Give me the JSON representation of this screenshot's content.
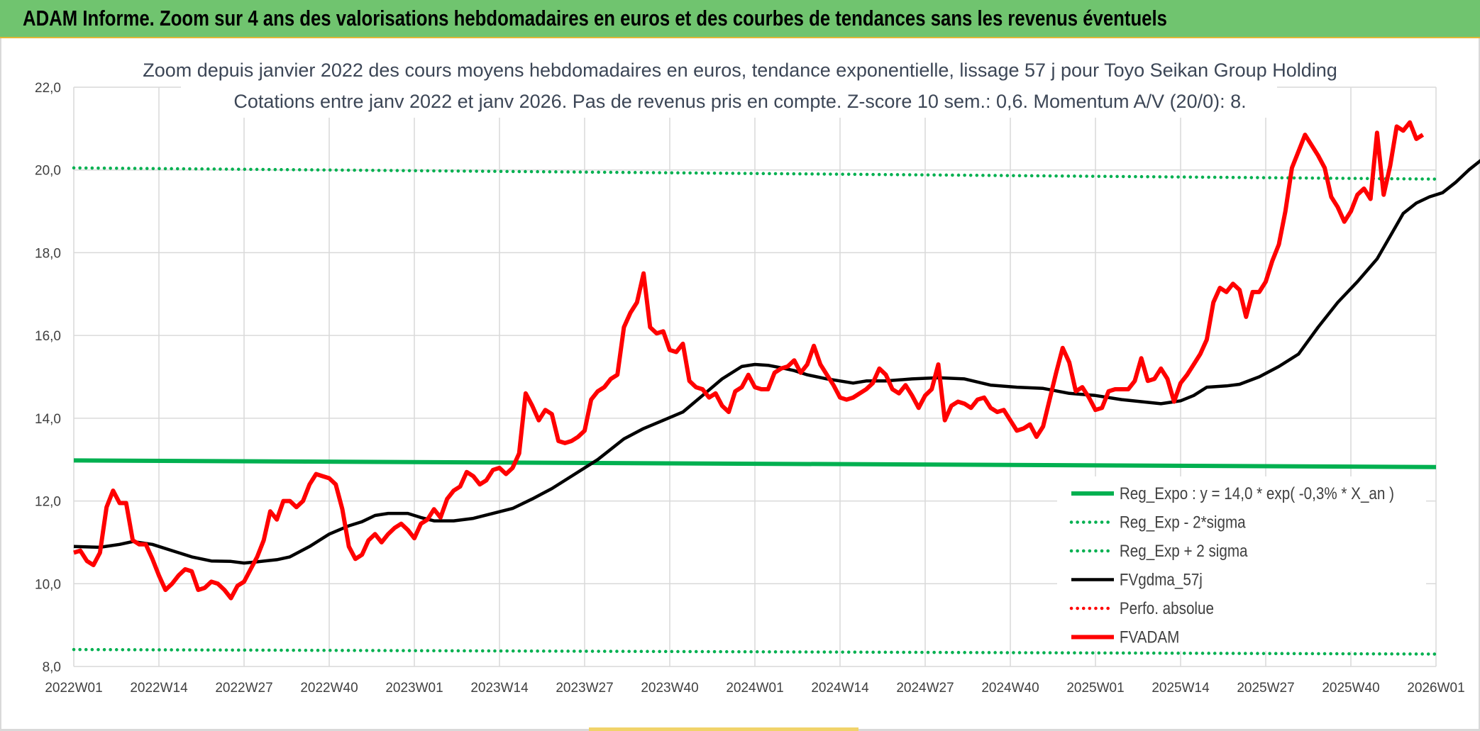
{
  "header": {
    "title": "ADAM Informe. Zoom sur 4 ans des valorisations hebdomadaires en euros et des courbes de tendances sans les revenus éventuels"
  },
  "chart_data": {
    "type": "line",
    "title": "Zoom depuis janvier 2022 des cours moyens hebdomadaires en euros, tendance exponentielle, lissage 57 j pour Toyo Seikan Group Holding",
    "subtitle": "Cotations entre janv 2022 et janv 2026. Pas de revenus pris en compte. Z-score 10 sem.: 0,6. Momentum A/V (20/0): 8.",
    "xlabel": "",
    "ylabel": "",
    "ylim": [
      8,
      22
    ],
    "yticks": [
      "8,0",
      "10,0",
      "12,0",
      "14,0",
      "16,0",
      "18,0",
      "20,0",
      "22,0"
    ],
    "xticks": [
      "2022W01",
      "2022W14",
      "2022W27",
      "2022W40",
      "2023W01",
      "2023W14",
      "2023W27",
      "2023W40",
      "2024W01",
      "2024W14",
      "2024W27",
      "2024W40",
      "2025W01",
      "2025W14",
      "2025W27",
      "2025W40",
      "2026W01"
    ],
    "x_range_weeks": [
      0,
      208
    ],
    "grid": true,
    "legend_position": "bottom-right",
    "series": [
      {
        "name": "Reg_Expo : y = 14,0 * exp( -0,3% *  X_an )",
        "color": "#00b050",
        "style": "solid-thick",
        "points": [
          [
            0,
            12.98
          ],
          [
            208,
            12.82
          ]
        ]
      },
      {
        "name": "Reg_Exp - 2*sigma",
        "color": "#00b050",
        "style": "dotted",
        "points": [
          [
            0,
            8.41
          ],
          [
            208,
            8.3
          ]
        ]
      },
      {
        "name": "Reg_Exp + 2 sigma",
        "color": "#00b050",
        "style": "dotted",
        "points": [
          [
            0,
            20.05
          ],
          [
            208,
            19.78
          ]
        ]
      },
      {
        "name": "FVgdma_57j",
        "color": "#000000",
        "style": "solid",
        "points": [
          [
            0,
            10.9
          ],
          [
            4,
            10.88
          ],
          [
            7,
            10.95
          ],
          [
            9,
            11.02
          ],
          [
            12,
            10.95
          ],
          [
            15,
            10.8
          ],
          [
            18,
            10.65
          ],
          [
            21,
            10.55
          ],
          [
            24,
            10.54
          ],
          [
            26,
            10.5
          ],
          [
            28,
            10.53
          ],
          [
            31,
            10.58
          ],
          [
            33,
            10.65
          ],
          [
            36,
            10.9
          ],
          [
            39,
            11.2
          ],
          [
            42,
            11.4
          ],
          [
            44,
            11.5
          ],
          [
            46,
            11.65
          ],
          [
            48,
            11.7
          ],
          [
            51,
            11.7
          ],
          [
            53,
            11.6
          ],
          [
            55,
            11.52
          ],
          [
            58,
            11.52
          ],
          [
            61,
            11.58
          ],
          [
            64,
            11.7
          ],
          [
            67,
            11.82
          ],
          [
            70,
            12.05
          ],
          [
            73,
            12.3
          ],
          [
            76,
            12.6
          ],
          [
            80,
            13.0
          ],
          [
            84,
            13.5
          ],
          [
            87,
            13.75
          ],
          [
            90,
            13.95
          ],
          [
            93,
            14.15
          ],
          [
            96,
            14.55
          ],
          [
            99,
            14.95
          ],
          [
            102,
            15.25
          ],
          [
            104,
            15.3
          ],
          [
            106,
            15.28
          ],
          [
            108,
            15.22
          ],
          [
            110,
            15.15
          ],
          [
            112,
            15.05
          ],
          [
            115,
            14.95
          ],
          [
            117,
            14.9
          ],
          [
            119,
            14.85
          ],
          [
            121,
            14.9
          ],
          [
            124,
            14.9
          ],
          [
            128,
            14.95
          ],
          [
            132,
            14.98
          ],
          [
            136,
            14.95
          ],
          [
            140,
            14.8
          ],
          [
            144,
            14.75
          ],
          [
            148,
            14.72
          ],
          [
            152,
            14.6
          ],
          [
            156,
            14.55
          ],
          [
            160,
            14.45
          ],
          [
            163,
            14.4
          ],
          [
            166,
            14.35
          ],
          [
            169,
            14.42
          ],
          [
            171,
            14.55
          ],
          [
            173,
            14.75
          ],
          [
            176,
            14.78
          ],
          [
            178,
            14.82
          ],
          [
            181,
            15.0
          ],
          [
            184,
            15.25
          ],
          [
            187,
            15.55
          ],
          [
            190,
            16.2
          ],
          [
            193,
            16.8
          ],
          [
            196,
            17.3
          ],
          [
            199,
            17.85
          ],
          [
            201,
            18.4
          ],
          [
            203,
            18.95
          ],
          [
            205,
            19.2
          ],
          [
            207,
            19.35
          ],
          [
            209,
            19.45
          ],
          [
            211,
            19.7
          ],
          [
            213,
            20.0
          ],
          [
            215,
            20.25
          ],
          [
            217,
            20.4
          ],
          [
            219,
            20.43
          ]
        ]
      },
      {
        "name": "Perfo. absolue",
        "color": "#ff0000",
        "style": "dotted",
        "points": []
      },
      {
        "name": "FVADAM",
        "color": "#ff0000",
        "style": "solid-thick",
        "points": [
          [
            0,
            10.75
          ],
          [
            1,
            10.8
          ],
          [
            2,
            10.55
          ],
          [
            3,
            10.45
          ],
          [
            4,
            10.75
          ],
          [
            5,
            11.85
          ],
          [
            6,
            12.25
          ],
          [
            7,
            11.95
          ],
          [
            8,
            11.95
          ],
          [
            9,
            11.05
          ],
          [
            10,
            10.95
          ],
          [
            11,
            10.95
          ],
          [
            12,
            10.6
          ],
          [
            13,
            10.2
          ],
          [
            14,
            9.85
          ],
          [
            15,
            10.0
          ],
          [
            16,
            10.2
          ],
          [
            17,
            10.35
          ],
          [
            18,
            10.3
          ],
          [
            19,
            9.85
          ],
          [
            20,
            9.9
          ],
          [
            21,
            10.05
          ],
          [
            22,
            10.0
          ],
          [
            23,
            9.85
          ],
          [
            24,
            9.65
          ],
          [
            25,
            9.95
          ],
          [
            26,
            10.05
          ],
          [
            27,
            10.35
          ],
          [
            28,
            10.65
          ],
          [
            29,
            11.05
          ],
          [
            30,
            11.75
          ],
          [
            31,
            11.55
          ],
          [
            32,
            12.0
          ],
          [
            33,
            12.0
          ],
          [
            34,
            11.85
          ],
          [
            35,
            12.0
          ],
          [
            36,
            12.4
          ],
          [
            37,
            12.65
          ],
          [
            38,
            12.6
          ],
          [
            39,
            12.55
          ],
          [
            40,
            12.4
          ],
          [
            41,
            11.8
          ],
          [
            42,
            10.9
          ],
          [
            43,
            10.6
          ],
          [
            44,
            10.7
          ],
          [
            45,
            11.05
          ],
          [
            46,
            11.2
          ],
          [
            47,
            11.0
          ],
          [
            48,
            11.2
          ],
          [
            49,
            11.35
          ],
          [
            50,
            11.45
          ],
          [
            51,
            11.3
          ],
          [
            52,
            11.1
          ],
          [
            53,
            11.45
          ],
          [
            54,
            11.55
          ],
          [
            55,
            11.8
          ],
          [
            56,
            11.6
          ],
          [
            57,
            12.05
          ],
          [
            58,
            12.25
          ],
          [
            59,
            12.35
          ],
          [
            60,
            12.7
          ],
          [
            61,
            12.6
          ],
          [
            62,
            12.4
          ],
          [
            63,
            12.5
          ],
          [
            64,
            12.75
          ],
          [
            65,
            12.8
          ],
          [
            66,
            12.65
          ],
          [
            67,
            12.8
          ],
          [
            68,
            13.15
          ],
          [
            69,
            14.6
          ],
          [
            70,
            14.3
          ],
          [
            71,
            13.95
          ],
          [
            72,
            14.2
          ],
          [
            73,
            14.1
          ],
          [
            74,
            13.45
          ],
          [
            75,
            13.4
          ],
          [
            76,
            13.45
          ],
          [
            77,
            13.55
          ],
          [
            78,
            13.7
          ],
          [
            79,
            14.45
          ],
          [
            80,
            14.65
          ],
          [
            81,
            14.75
          ],
          [
            82,
            14.95
          ],
          [
            83,
            15.05
          ],
          [
            84,
            16.2
          ],
          [
            85,
            16.55
          ],
          [
            86,
            16.8
          ],
          [
            87,
            17.5
          ],
          [
            88,
            16.2
          ],
          [
            89,
            16.05
          ],
          [
            90,
            16.1
          ],
          [
            91,
            15.65
          ],
          [
            92,
            15.6
          ],
          [
            93,
            15.8
          ],
          [
            94,
            14.9
          ],
          [
            95,
            14.75
          ],
          [
            96,
            14.7
          ],
          [
            97,
            14.5
          ],
          [
            98,
            14.6
          ],
          [
            99,
            14.3
          ],
          [
            100,
            14.15
          ],
          [
            101,
            14.65
          ],
          [
            102,
            14.75
          ],
          [
            103,
            15.05
          ],
          [
            104,
            14.75
          ],
          [
            105,
            14.7
          ],
          [
            106,
            14.7
          ],
          [
            107,
            15.1
          ],
          [
            108,
            15.2
          ],
          [
            109,
            15.25
          ],
          [
            110,
            15.4
          ],
          [
            111,
            15.1
          ],
          [
            112,
            15.3
          ],
          [
            113,
            15.75
          ],
          [
            114,
            15.3
          ],
          [
            115,
            15.05
          ],
          [
            116,
            14.8
          ],
          [
            117,
            14.5
          ],
          [
            118,
            14.45
          ],
          [
            119,
            14.5
          ],
          [
            120,
            14.6
          ],
          [
            121,
            14.7
          ],
          [
            122,
            14.85
          ],
          [
            123,
            15.2
          ],
          [
            124,
            15.05
          ],
          [
            125,
            14.7
          ],
          [
            126,
            14.6
          ],
          [
            127,
            14.8
          ],
          [
            128,
            14.55
          ],
          [
            129,
            14.25
          ],
          [
            130,
            14.55
          ],
          [
            131,
            14.7
          ],
          [
            132,
            15.3
          ],
          [
            133,
            13.95
          ],
          [
            134,
            14.3
          ],
          [
            135,
            14.4
          ],
          [
            136,
            14.35
          ],
          [
            137,
            14.25
          ],
          [
            138,
            14.45
          ],
          [
            139,
            14.5
          ],
          [
            140,
            14.25
          ],
          [
            141,
            14.15
          ],
          [
            142,
            14.2
          ],
          [
            143,
            13.95
          ],
          [
            144,
            13.7
          ],
          [
            145,
            13.75
          ],
          [
            146,
            13.85
          ],
          [
            147,
            13.55
          ],
          [
            148,
            13.8
          ],
          [
            149,
            14.45
          ],
          [
            150,
            15.1
          ],
          [
            151,
            15.7
          ],
          [
            152,
            15.35
          ],
          [
            153,
            14.65
          ],
          [
            154,
            14.75
          ],
          [
            155,
            14.5
          ],
          [
            156,
            14.2
          ],
          [
            157,
            14.25
          ],
          [
            158,
            14.65
          ],
          [
            159,
            14.7
          ],
          [
            160,
            14.7
          ],
          [
            161,
            14.7
          ],
          [
            162,
            14.9
          ],
          [
            163,
            15.45
          ],
          [
            164,
            14.9
          ],
          [
            165,
            14.95
          ],
          [
            166,
            15.2
          ],
          [
            167,
            14.95
          ],
          [
            168,
            14.4
          ],
          [
            169,
            14.85
          ],
          [
            170,
            15.05
          ],
          [
            171,
            15.3
          ],
          [
            172,
            15.55
          ],
          [
            173,
            15.9
          ],
          [
            174,
            16.8
          ],
          [
            175,
            17.15
          ],
          [
            176,
            17.05
          ],
          [
            177,
            17.25
          ],
          [
            178,
            17.1
          ],
          [
            179,
            16.45
          ],
          [
            180,
            17.05
          ],
          [
            181,
            17.05
          ],
          [
            182,
            17.3
          ],
          [
            183,
            17.8
          ],
          [
            184,
            18.2
          ],
          [
            185,
            19.0
          ],
          [
            186,
            20.05
          ],
          [
            187,
            20.45
          ],
          [
            188,
            20.85
          ],
          [
            189,
            20.6
          ],
          [
            190,
            20.35
          ],
          [
            191,
            20.05
          ],
          [
            192,
            19.35
          ],
          [
            193,
            19.1
          ],
          [
            194,
            18.75
          ],
          [
            195,
            19.0
          ],
          [
            196,
            19.4
          ],
          [
            197,
            19.55
          ],
          [
            198,
            19.3
          ],
          [
            199,
            20.9
          ],
          [
            200,
            19.4
          ],
          [
            201,
            20.1
          ],
          [
            202,
            21.05
          ],
          [
            203,
            20.95
          ],
          [
            204,
            21.15
          ],
          [
            205,
            20.75
          ],
          [
            206,
            20.85
          ]
        ]
      }
    ]
  }
}
